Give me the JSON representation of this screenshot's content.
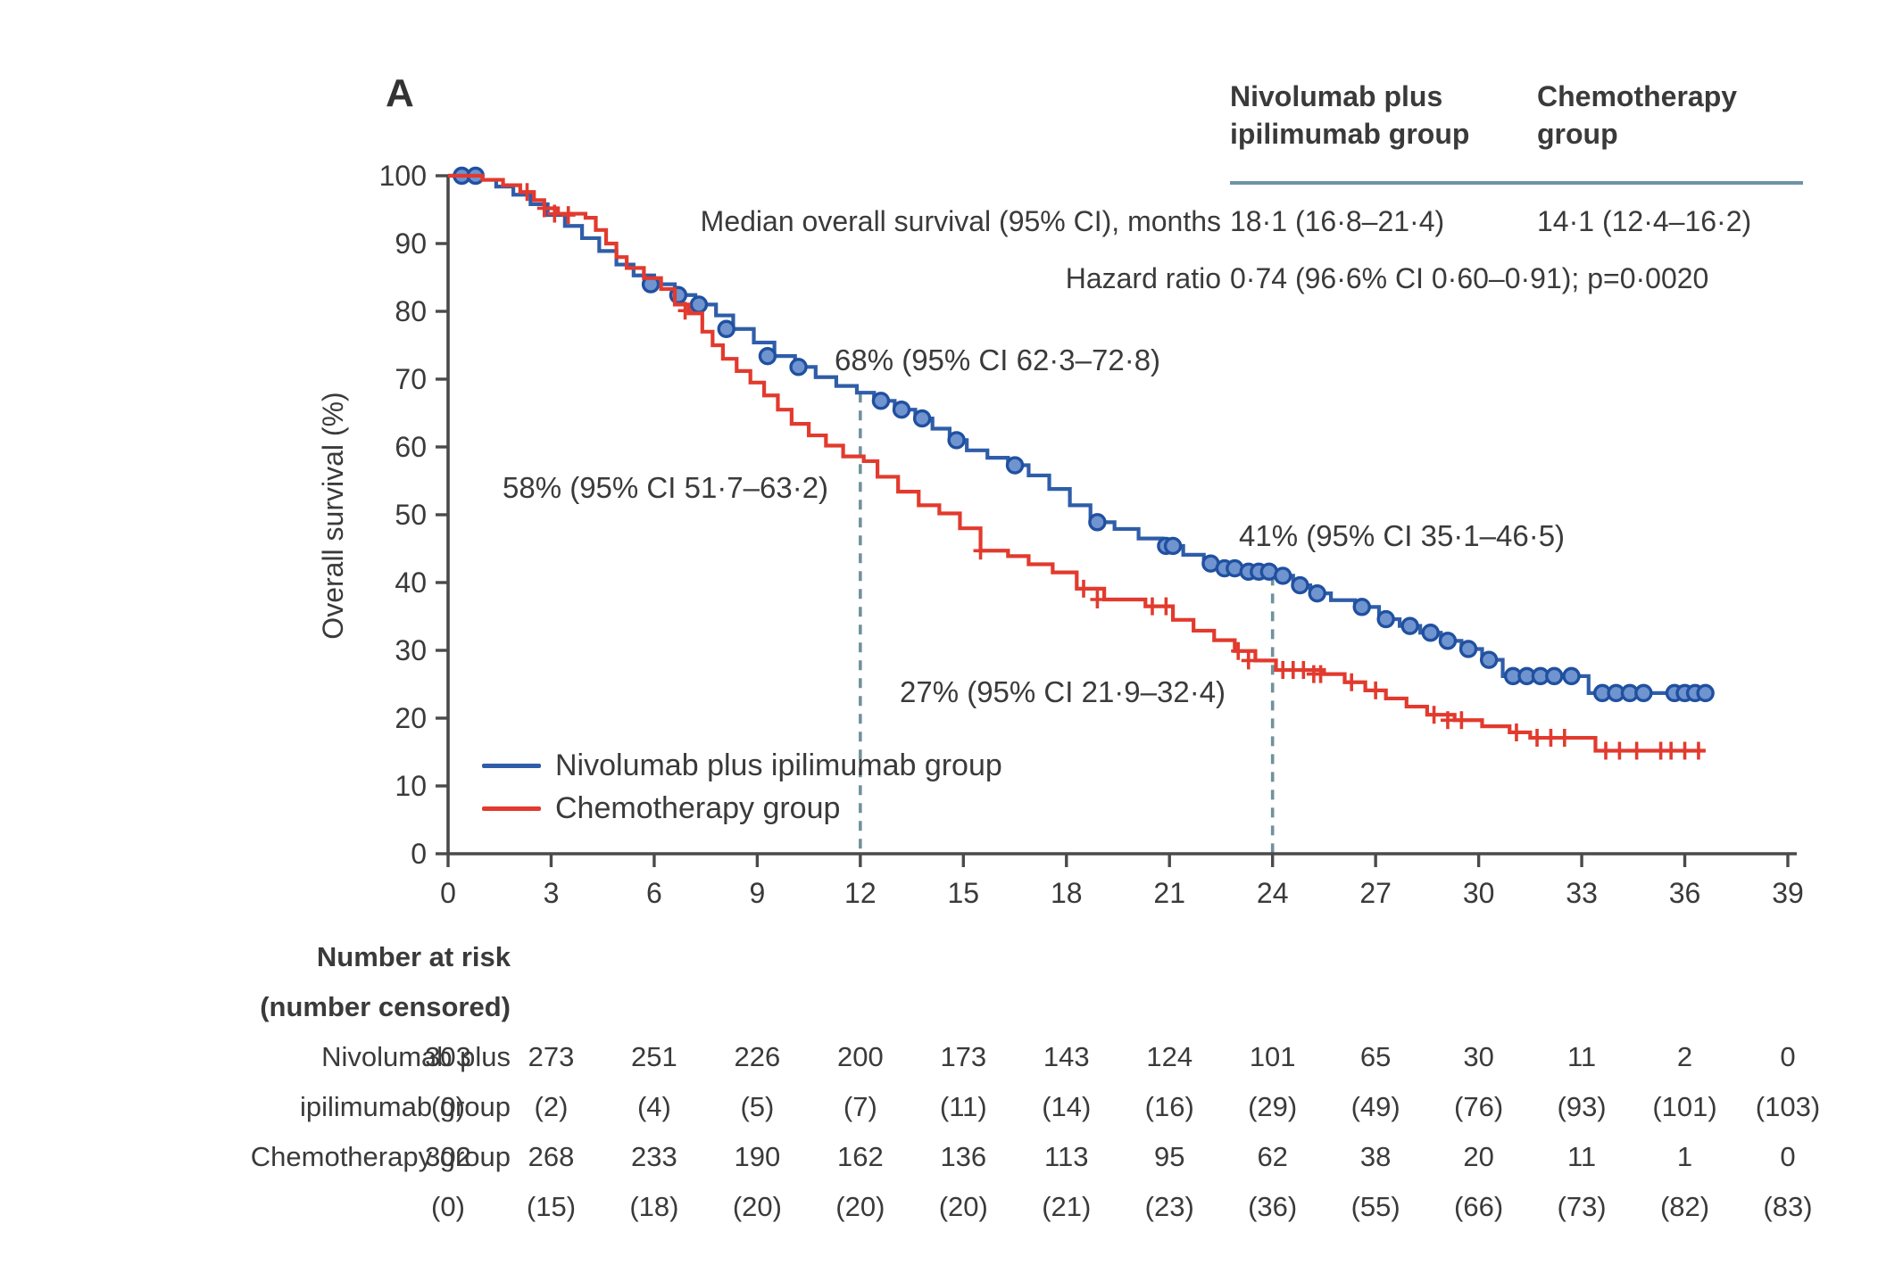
{
  "panel_label": "A",
  "colors": {
    "nivo_blue": "#2f5da9",
    "nivo_censor_stroke": "#2050a0",
    "nivo_censor_fill": "#6f94cf",
    "chemo_red": "#e23a2e",
    "dashed_reference": "#70929c",
    "axis": "#4a4a4a",
    "text": "#3a3a3a",
    "table_rule": "#6e93a8"
  },
  "stats_table": {
    "col1_header_line1": "Nivolumab plus",
    "col1_header_line2": "ipilimumab group",
    "col2_header_line1": "Chemotherapy",
    "col2_header_line2": "group",
    "median_row_label": "Median overall survival (95% CI), months",
    "median_col1": "18·1 (16·8–21·4)",
    "median_col2": "14·1 (12·4–16·2)",
    "hazard_row_label": "Hazard ratio",
    "hazard_value": "0·74 (96·6% CI 0·60–0·91); p=0·0020"
  },
  "annotations": [
    {
      "text": "68% (95% CI 62·3–72·8)",
      "at_months": 12,
      "group": "nivolumab"
    },
    {
      "text": "58% (95% CI 51·7–63·2)",
      "at_months": 12,
      "group": "chemotherapy"
    },
    {
      "text": "41% (95% CI 35·1–46·5)",
      "at_months": 24,
      "group": "nivolumab"
    },
    {
      "text": "27% (95% CI 21·9–32·4)",
      "at_months": 24,
      "group": "chemotherapy"
    }
  ],
  "legend": {
    "items": [
      {
        "label": "Nivolumab plus ipilimumab group",
        "color": "#2f5da9"
      },
      {
        "label": "Chemotherapy group",
        "color": "#e23a2e"
      }
    ]
  },
  "at_risk_block": {
    "header_line1": "Number at risk",
    "header_line2": "(number censored)",
    "row_label_1a": "Nivolumab plus",
    "row_label_1b": "ipilimumab group",
    "row_label_2": "Chemotherapy group"
  },
  "chart_data": {
    "type": "line",
    "subtype": "kaplan-meier-step",
    "title": "",
    "xlabel": "",
    "ylabel": "Overall survival (%)",
    "xlim": [
      0,
      39
    ],
    "ylim": [
      0,
      100
    ],
    "x_ticks": [
      0,
      3,
      6,
      9,
      12,
      15,
      18,
      21,
      24,
      27,
      30,
      33,
      36,
      39
    ],
    "y_ticks": [
      0,
      10,
      20,
      30,
      40,
      50,
      60,
      70,
      80,
      90,
      100
    ],
    "grid": false,
    "legend_position": "lower-left-inside",
    "reference_lines": [
      {
        "x": 12,
        "top_pct": 68
      },
      {
        "x": 24,
        "top_pct": 41
      }
    ],
    "series": [
      {
        "name": "Nivolumab plus ipilimumab group",
        "color": "#2f5da9",
        "censor_marker": "circle",
        "points": [
          [
            0,
            100
          ],
          [
            0.9,
            99.4
          ],
          [
            1.4,
            98.4
          ],
          [
            1.9,
            97.2
          ],
          [
            2.4,
            95.8
          ],
          [
            2.9,
            94.2
          ],
          [
            3.4,
            92.6
          ],
          [
            3.9,
            90.8
          ],
          [
            4.4,
            88.9
          ],
          [
            4.9,
            86.9
          ],
          [
            5.4,
            85.3
          ],
          [
            6,
            84
          ],
          [
            6.6,
            82.4
          ],
          [
            7.2,
            81
          ],
          [
            7.8,
            79.4
          ],
          [
            8.3,
            77.4
          ],
          [
            8.9,
            75.4
          ],
          [
            9.5,
            73.4
          ],
          [
            10.1,
            71.8
          ],
          [
            10.7,
            70.3
          ],
          [
            11.3,
            69
          ],
          [
            11.9,
            68
          ],
          [
            12.4,
            66.8
          ],
          [
            13,
            65.5
          ],
          [
            13.6,
            64.2
          ],
          [
            14.1,
            62.7
          ],
          [
            14.6,
            61
          ],
          [
            15.1,
            59.5
          ],
          [
            15.7,
            58.4
          ],
          [
            16.3,
            57.3
          ],
          [
            16.9,
            55.8
          ],
          [
            17.5,
            53.8
          ],
          [
            18.1,
            51.4
          ],
          [
            18.7,
            48.9
          ],
          [
            19.4,
            47.9
          ],
          [
            20.1,
            46.5
          ],
          [
            20.8,
            45.4
          ],
          [
            21.4,
            44.1
          ],
          [
            22,
            42.8
          ],
          [
            22.5,
            42.1
          ],
          [
            23.1,
            41.6
          ],
          [
            24.1,
            41
          ],
          [
            24.6,
            39.6
          ],
          [
            25.1,
            38.4
          ],
          [
            25.7,
            37.4
          ],
          [
            26.4,
            36.4
          ],
          [
            27.1,
            34.6
          ],
          [
            27.7,
            33.6
          ],
          [
            28.3,
            32.6
          ],
          [
            28.9,
            31.4
          ],
          [
            29.5,
            30.2
          ],
          [
            30.1,
            28.6
          ],
          [
            30.7,
            26.2
          ],
          [
            33.2,
            23.7
          ],
          [
            36.6,
            23.7
          ]
        ],
        "censor_points": [
          [
            0.4,
            100
          ],
          [
            0.8,
            100
          ],
          [
            5.9,
            84
          ],
          [
            6.7,
            82.4
          ],
          [
            7.3,
            81
          ],
          [
            8.1,
            77.4
          ],
          [
            9.3,
            73.4
          ],
          [
            10.2,
            71.8
          ],
          [
            12.6,
            66.8
          ],
          [
            13.2,
            65.5
          ],
          [
            13.8,
            64.2
          ],
          [
            14.8,
            61
          ],
          [
            16.5,
            57.3
          ],
          [
            18.9,
            48.9
          ],
          [
            20.9,
            45.4
          ],
          [
            21.1,
            45.4
          ],
          [
            22.2,
            42.8
          ],
          [
            22.6,
            42.1
          ],
          [
            22.9,
            42.1
          ],
          [
            23.3,
            41.6
          ],
          [
            23.6,
            41.6
          ],
          [
            23.9,
            41.6
          ],
          [
            24.3,
            41
          ],
          [
            24.8,
            39.6
          ],
          [
            25.3,
            38.4
          ],
          [
            26.6,
            36.4
          ],
          [
            27.3,
            34.6
          ],
          [
            28,
            33.6
          ],
          [
            28.6,
            32.6
          ],
          [
            29.1,
            31.4
          ],
          [
            29.7,
            30.2
          ],
          [
            30.3,
            28.6
          ],
          [
            31,
            26.2
          ],
          [
            31.4,
            26.2
          ],
          [
            31.8,
            26.2
          ],
          [
            32.2,
            26.2
          ],
          [
            32.7,
            26.2
          ],
          [
            33.6,
            23.7
          ],
          [
            34,
            23.7
          ],
          [
            34.4,
            23.7
          ],
          [
            34.8,
            23.7
          ],
          [
            35.7,
            23.7
          ],
          [
            36,
            23.7
          ],
          [
            36.3,
            23.7
          ],
          [
            36.6,
            23.7
          ]
        ]
      },
      {
        "name": "Chemotherapy group",
        "color": "#e23a2e",
        "censor_marker": "plus",
        "points": [
          [
            0,
            100
          ],
          [
            1,
            99.4
          ],
          [
            1.6,
            98.6
          ],
          [
            2.1,
            97.6
          ],
          [
            2.5,
            96.4
          ],
          [
            2.8,
            95.2
          ],
          [
            3.2,
            94.4
          ],
          [
            4,
            93.8
          ],
          [
            4.3,
            92
          ],
          [
            4.6,
            90
          ],
          [
            4.9,
            88
          ],
          [
            5.2,
            86.4
          ],
          [
            5.7,
            84.9
          ],
          [
            6.2,
            83.3
          ],
          [
            6.6,
            81
          ],
          [
            7,
            79.7
          ],
          [
            7.4,
            77
          ],
          [
            7.7,
            75
          ],
          [
            8,
            73
          ],
          [
            8.4,
            71.2
          ],
          [
            8.8,
            69.5
          ],
          [
            9.2,
            67.6
          ],
          [
            9.6,
            65.5
          ],
          [
            10,
            63.4
          ],
          [
            10.5,
            61.7
          ],
          [
            11,
            60.2
          ],
          [
            11.5,
            58.6
          ],
          [
            12.1,
            57.9
          ],
          [
            12.5,
            55.6
          ],
          [
            13.1,
            53.4
          ],
          [
            13.7,
            51.4
          ],
          [
            14.3,
            50.2
          ],
          [
            14.9,
            48
          ],
          [
            15.5,
            44.7
          ],
          [
            16.3,
            43.9
          ],
          [
            16.9,
            42.7
          ],
          [
            17.6,
            41.5
          ],
          [
            18.3,
            39.1
          ],
          [
            19.1,
            37.5
          ],
          [
            20.3,
            36.5
          ],
          [
            21.1,
            34.5
          ],
          [
            21.7,
            32.9
          ],
          [
            22.3,
            31.5
          ],
          [
            22.9,
            29.9
          ],
          [
            23.5,
            28.5
          ],
          [
            24.1,
            27.1
          ],
          [
            25.5,
            26.5
          ],
          [
            26.1,
            25.3
          ],
          [
            26.7,
            24.1
          ],
          [
            27.3,
            22.9
          ],
          [
            27.9,
            21.7
          ],
          [
            28.5,
            20.5
          ],
          [
            29.3,
            19.7
          ],
          [
            30.1,
            18.8
          ],
          [
            30.9,
            17.9
          ],
          [
            31.5,
            17.1
          ],
          [
            33.4,
            15.2
          ],
          [
            36.6,
            15.2
          ]
        ],
        "censor_points": [
          [
            2.3,
            97.6
          ],
          [
            2.8,
            95.2
          ],
          [
            3.1,
            94.4
          ],
          [
            3.5,
            94.2
          ],
          [
            6.9,
            80.1
          ],
          [
            15.5,
            44.7
          ],
          [
            18.5,
            39.1
          ],
          [
            18.9,
            37.5
          ],
          [
            20.5,
            36.5
          ],
          [
            20.9,
            36.5
          ],
          [
            23,
            29.9
          ],
          [
            23.3,
            28.5
          ],
          [
            24.3,
            27.1
          ],
          [
            24.6,
            27.1
          ],
          [
            24.9,
            27.1
          ],
          [
            25.2,
            26.5
          ],
          [
            25.4,
            26.5
          ],
          [
            26.3,
            25.3
          ],
          [
            27,
            24.1
          ],
          [
            28.7,
            20.5
          ],
          [
            29.1,
            19.7
          ],
          [
            29.5,
            19.7
          ],
          [
            31.1,
            17.9
          ],
          [
            31.7,
            17.1
          ],
          [
            32.1,
            17.1
          ],
          [
            32.5,
            17.1
          ],
          [
            33.7,
            15.2
          ],
          [
            34.1,
            15.2
          ],
          [
            34.6,
            15.2
          ],
          [
            35.3,
            15.2
          ],
          [
            35.6,
            15.2
          ],
          [
            36,
            15.2
          ],
          [
            36.4,
            15.2
          ]
        ]
      }
    ],
    "at_risk": {
      "months": [
        0,
        3,
        6,
        9,
        12,
        15,
        18,
        21,
        24,
        27,
        30,
        33,
        36,
        39
      ],
      "groups": [
        {
          "name": "Nivolumab plus ipilimumab group",
          "at_risk": [
            "303",
            "273",
            "251",
            "226",
            "200",
            "173",
            "143",
            "124",
            "101",
            "65",
            "30",
            "11",
            "2",
            "0"
          ],
          "censored": [
            "(0)",
            "(2)",
            "(4)",
            "(5)",
            "(7)",
            "(11)",
            "(14)",
            "(16)",
            "(29)",
            "(49)",
            "(76)",
            "(93)",
            "(101)",
            "(103)"
          ]
        },
        {
          "name": "Chemotherapy group",
          "at_risk": [
            "302",
            "268",
            "233",
            "190",
            "162",
            "136",
            "113",
            "95",
            "62",
            "38",
            "20",
            "11",
            "1",
            "0"
          ],
          "censored": [
            "(0)",
            "(15)",
            "(18)",
            "(20)",
            "(20)",
            "(20)",
            "(21)",
            "(23)",
            "(36)",
            "(55)",
            "(66)",
            "(73)",
            "(82)",
            "(83)"
          ]
        }
      ]
    }
  }
}
